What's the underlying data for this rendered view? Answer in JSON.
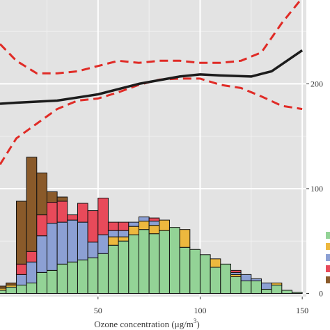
{
  "chart_data": {
    "type": "histogram+line",
    "xlabel": "Ozone concentration (μg/m³)",
    "xlabel_main": "Ozone concentration (μg/m",
    "xlabel_sup": "3",
    "xlabel_tail": ")",
    "x_ticks": [
      50,
      100,
      150
    ],
    "x_range": [
      2,
      152
    ],
    "y_right_ticks": [
      0,
      100,
      200
    ],
    "y_range": [
      -3,
      280
    ],
    "grid": true,
    "background": "#e3e3e3",
    "bin_width": 5,
    "bin_starts": [
      0,
      5,
      10,
      15,
      20,
      25,
      30,
      35,
      40,
      45,
      50,
      55,
      60,
      65,
      70,
      75,
      80,
      85,
      90,
      95,
      100,
      105,
      110,
      115,
      120,
      125,
      130,
      135,
      140,
      145
    ],
    "stack_colors": [
      "#93d396",
      "#edb83e",
      "#8ca0d4",
      "#e84a5a",
      "#8a5a2a"
    ],
    "stacks": [
      [
        3,
        2,
        0,
        0,
        2
      ],
      [
        6,
        2,
        0,
        0,
        2
      ],
      [
        8,
        0,
        10,
        10,
        60
      ],
      [
        10,
        0,
        20,
        10,
        90
      ],
      [
        20,
        0,
        35,
        20,
        40
      ],
      [
        22,
        0,
        45,
        20,
        10
      ],
      [
        28,
        0,
        40,
        20,
        4
      ],
      [
        30,
        0,
        40,
        5,
        0
      ],
      [
        32,
        0,
        36,
        18,
        0
      ],
      [
        34,
        0,
        15,
        30,
        0
      ],
      [
        38,
        0,
        18,
        35,
        0
      ],
      [
        46,
        8,
        6,
        8,
        0
      ],
      [
        50,
        4,
        6,
        8,
        0
      ],
      [
        56,
        8,
        4,
        0,
        0
      ],
      [
        61,
        8,
        4,
        0,
        0
      ],
      [
        57,
        8,
        4,
        3,
        0
      ],
      [
        60,
        10,
        0,
        0,
        0
      ],
      [
        63,
        0,
        0,
        0,
        0
      ],
      [
        44,
        17,
        0,
        0,
        0
      ],
      [
        42,
        0,
        0,
        0,
        0
      ],
      [
        37,
        0,
        0,
        0,
        0
      ],
      [
        25,
        8,
        0,
        0,
        0
      ],
      [
        28,
        0,
        0,
        0,
        0
      ],
      [
        16,
        2,
        2,
        2,
        0
      ],
      [
        12,
        0,
        6,
        0,
        0
      ],
      [
        12,
        0,
        2,
        0,
        0
      ],
      [
        4,
        0,
        6,
        0,
        0
      ],
      [
        8,
        2,
        0,
        0,
        0
      ],
      [
        3,
        0,
        0,
        0,
        0
      ],
      [
        1,
        0,
        0,
        0,
        0
      ]
    ],
    "fit_line": {
      "x": [
        2,
        10,
        30,
        50,
        70,
        90,
        100,
        110,
        125,
        135,
        150
      ],
      "y": [
        181,
        182,
        184,
        190,
        200,
        207,
        209,
        208,
        207,
        212,
        232
      ]
    },
    "ci_upper": {
      "x": [
        2,
        10,
        20,
        30,
        40,
        50,
        60,
        70,
        80,
        90,
        100,
        110,
        120,
        130,
        140,
        150
      ],
      "y": [
        238,
        222,
        210,
        210,
        212,
        217,
        222,
        220,
        222,
        222,
        220,
        220,
        222,
        230,
        258,
        282
      ]
    },
    "ci_lower": {
      "x": [
        2,
        10,
        20,
        30,
        40,
        50,
        60,
        70,
        80,
        90,
        100,
        110,
        120,
        130,
        140,
        150
      ],
      "y": [
        123,
        148,
        162,
        176,
        184,
        186,
        192,
        199,
        204,
        205,
        205,
        199,
        196,
        188,
        179,
        176
      ]
    }
  }
}
